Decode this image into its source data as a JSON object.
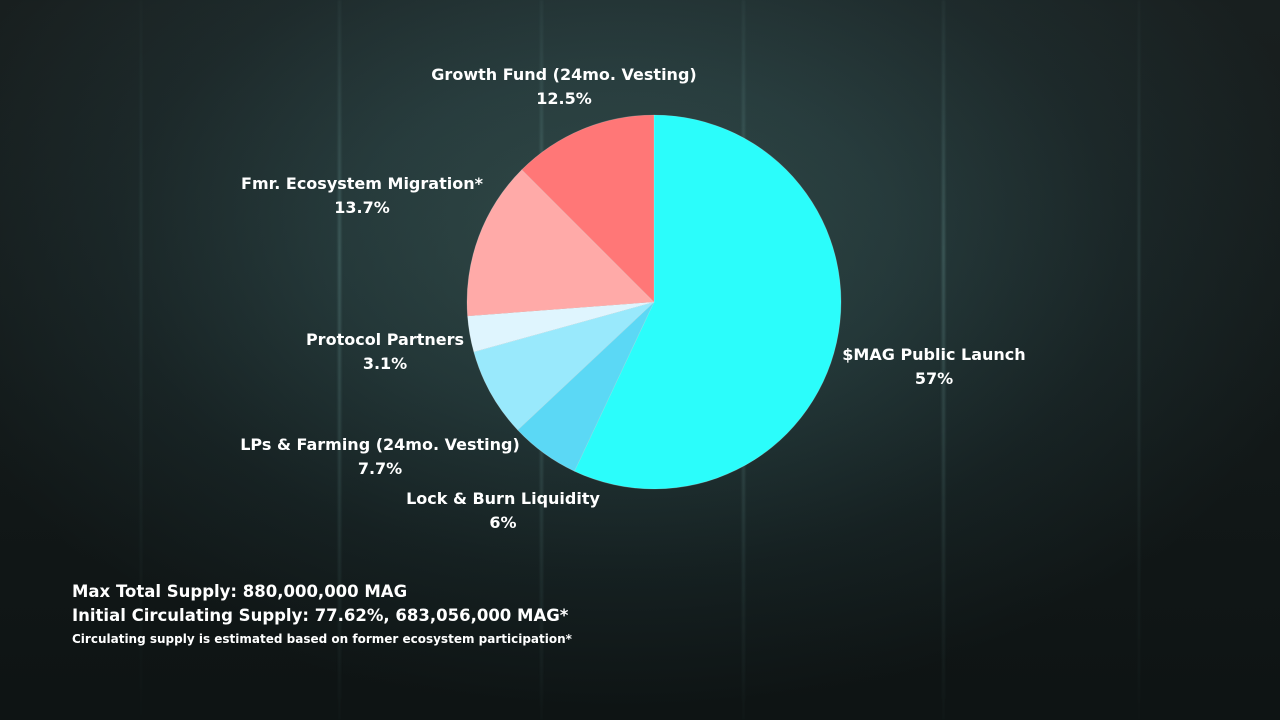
{
  "chart_data": {
    "type": "pie",
    "slices": [
      {
        "name": "$MAG Public Launch",
        "label": "57%",
        "value": 57,
        "color": "#2bfdfb"
      },
      {
        "name": "Lock & Burn Liquidity",
        "label": "6%",
        "value": 6,
        "color": "#5bd8f5"
      },
      {
        "name": "LPs & Farming (24mo. Vesting)",
        "label": "7.7%",
        "value": 7.7,
        "color": "#99e9fc"
      },
      {
        "name": "Protocol Partners",
        "label": "3.1%",
        "value": 3.1,
        "color": "#dff5fe"
      },
      {
        "name": "Fmr. Ecosystem Migration*",
        "label": "13.7%",
        "value": 13.7,
        "color": "#ffaaa8"
      },
      {
        "name": "Growth Fund (24mo. Vesting)",
        "label": "12.5%",
        "value": 12.5,
        "color": "#ff7777"
      }
    ],
    "start_angle": "top",
    "direction": "clockwise"
  },
  "footer": {
    "max_supply": "Max Total Supply: 880,000,000 MAG",
    "circulating_supply": "Initial Circulating Supply: 77.62%, 683,056,000 MAG*",
    "note": "Circulating supply is estimated based on former ecosystem participation*"
  }
}
